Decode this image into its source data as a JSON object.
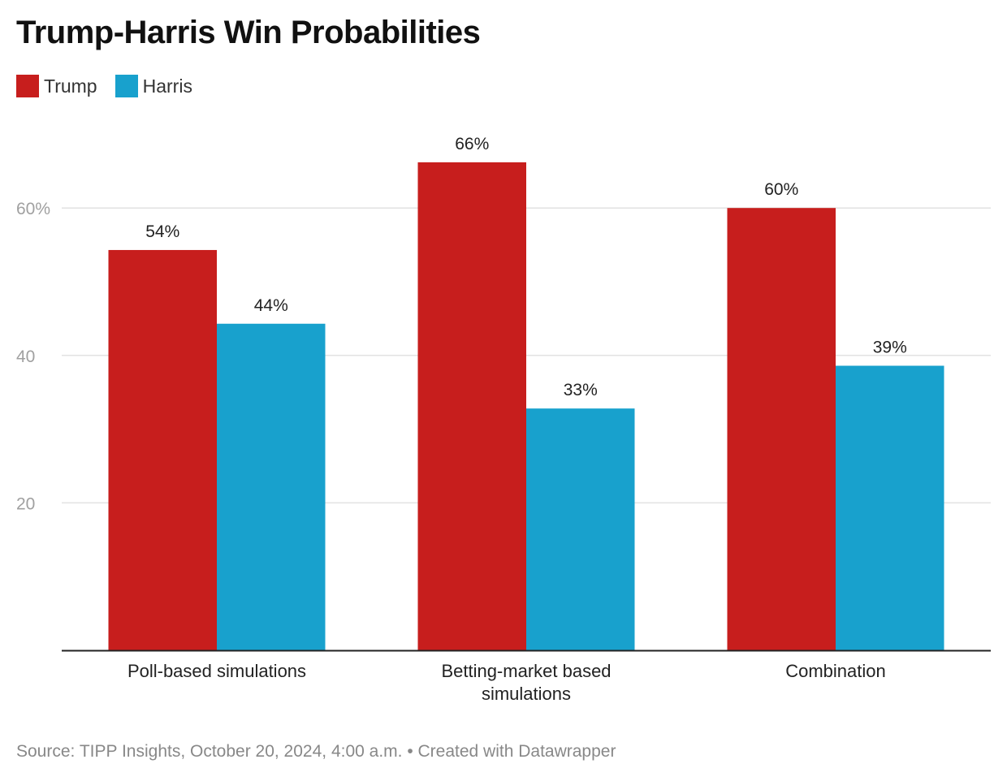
{
  "chart_data": {
    "type": "bar",
    "title": "Trump-Harris Win Probabilities",
    "categories": [
      [
        "Poll-based simulations"
      ],
      [
        "Betting-market based",
        "simulations"
      ],
      [
        "Combination"
      ]
    ],
    "series": [
      {
        "name": "Trump",
        "color": "#c71e1d",
        "values": [
          54.3,
          66.2,
          60.0
        ],
        "labels": [
          "54%",
          "66%",
          "60%"
        ]
      },
      {
        "name": "Harris",
        "color": "#18a1cd",
        "values": [
          44.3,
          32.8,
          38.6
        ],
        "labels": [
          "44%",
          "33%",
          "39%"
        ]
      }
    ],
    "y_ticks": [
      {
        "value": 20,
        "label": "20"
      },
      {
        "value": 40,
        "label": "40"
      },
      {
        "value": 60,
        "label": "60%"
      }
    ],
    "ylim": [
      0,
      70
    ],
    "xlabel": "",
    "ylabel": "",
    "legend_position": "top-left",
    "grid": true
  },
  "footer": {
    "source": "Source: TIPP Insights, October 20, 2024, 4:00 a.m. • Created with Datawrapper"
  }
}
